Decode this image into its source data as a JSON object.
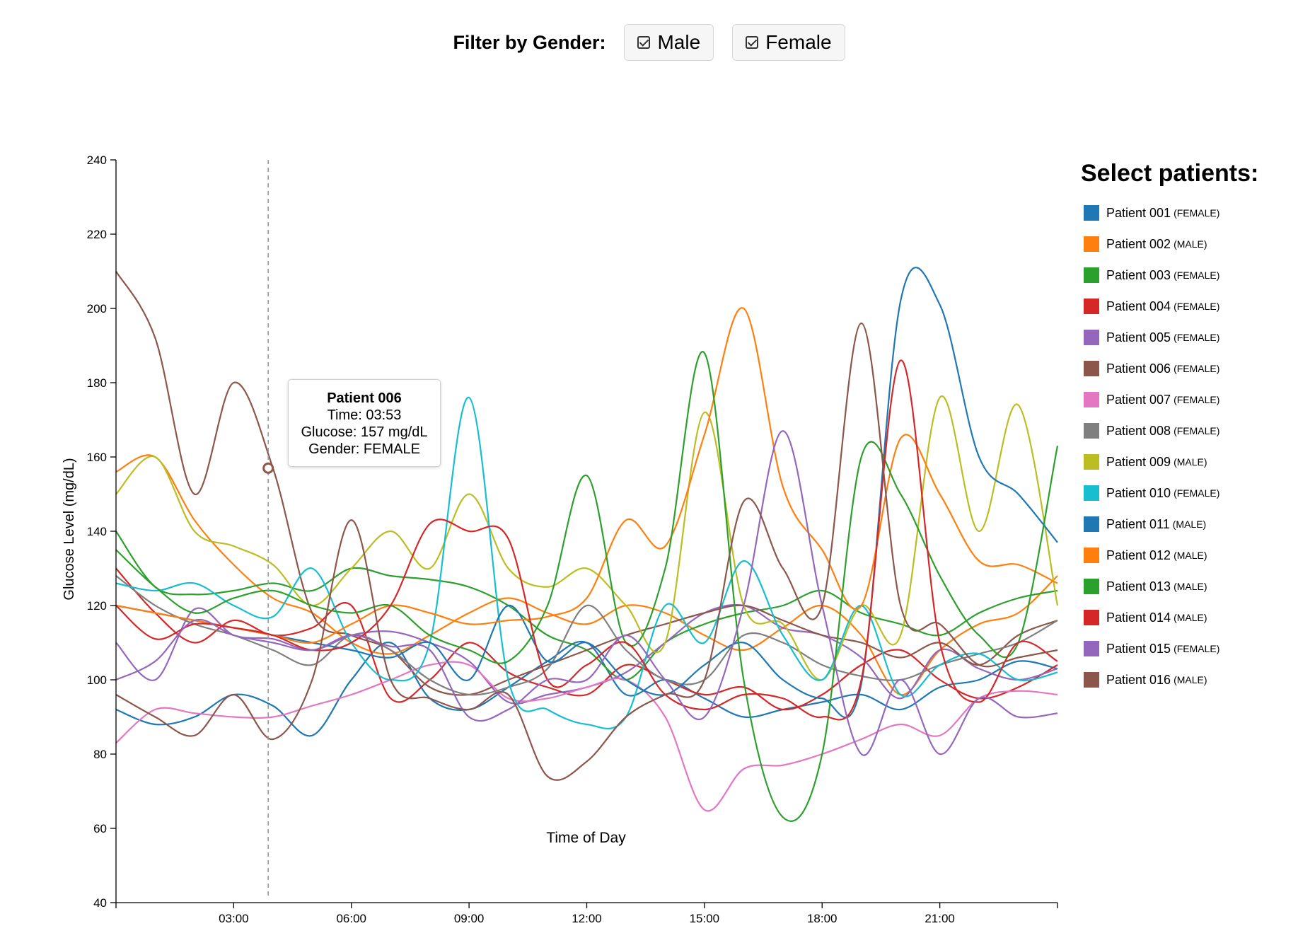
{
  "filter": {
    "label": "Filter by Gender:",
    "options": [
      {
        "label": "Male",
        "checked": true
      },
      {
        "label": "Female",
        "checked": true
      }
    ]
  },
  "legend": {
    "title": "Select patients:",
    "items": [
      {
        "name": "Patient 001",
        "gender": "(FEMALE)",
        "color": "#1f77b4"
      },
      {
        "name": "Patient 002",
        "gender": "(MALE)",
        "color": "#ff7f0e"
      },
      {
        "name": "Patient 003",
        "gender": "(FEMALE)",
        "color": "#2ca02c"
      },
      {
        "name": "Patient 004",
        "gender": "(FEMALE)",
        "color": "#d62728"
      },
      {
        "name": "Patient 005",
        "gender": "(FEMALE)",
        "color": "#9467bd"
      },
      {
        "name": "Patient 006",
        "gender": "(FEMALE)",
        "color": "#8c564b"
      },
      {
        "name": "Patient 007",
        "gender": "(FEMALE)",
        "color": "#e377c2"
      },
      {
        "name": "Patient 008",
        "gender": "(FEMALE)",
        "color": "#7f7f7f"
      },
      {
        "name": "Patient 009",
        "gender": "(MALE)",
        "color": "#bcbd22"
      },
      {
        "name": "Patient 010",
        "gender": "(FEMALE)",
        "color": "#17becf"
      },
      {
        "name": "Patient 011",
        "gender": "(MALE)",
        "color": "#1f77b4"
      },
      {
        "name": "Patient 012",
        "gender": "(MALE)",
        "color": "#ff7f0e"
      },
      {
        "name": "Patient 013",
        "gender": "(MALE)",
        "color": "#2ca02c"
      },
      {
        "name": "Patient 014",
        "gender": "(MALE)",
        "color": "#d62728"
      },
      {
        "name": "Patient 015",
        "gender": "(FEMALE)",
        "color": "#9467bd"
      },
      {
        "name": "Patient 016",
        "gender": "(MALE)",
        "color": "#8c564b"
      }
    ]
  },
  "tooltip": {
    "title": "Patient 006",
    "time": "Time: 03:53",
    "glucose": "Glucose: 157 mg/dL",
    "gender": "Gender: FEMALE"
  },
  "chart_data": {
    "type": "line",
    "xlabel": "Time of Day",
    "ylabel": "Glucose Level (mg/dL)",
    "xlim": [
      0,
      24
    ],
    "ylim": [
      40,
      240
    ],
    "x_ticks": [
      {
        "value": 3,
        "label": "03:00"
      },
      {
        "value": 6,
        "label": "06:00"
      },
      {
        "value": 9,
        "label": "09:00"
      },
      {
        "value": 12,
        "label": "12:00"
      },
      {
        "value": 15,
        "label": "15:00"
      },
      {
        "value": 18,
        "label": "18:00"
      },
      {
        "value": 21,
        "label": "21:00"
      }
    ],
    "y_ticks": [
      40,
      60,
      80,
      100,
      120,
      140,
      160,
      180,
      200,
      220,
      240
    ],
    "hover": {
      "x": 3.88,
      "y": 157,
      "series": "Patient 006",
      "color": "#8c564b"
    },
    "x": [
      0,
      1,
      2,
      3,
      4,
      5,
      6,
      7,
      8,
      9,
      10,
      11,
      12,
      13,
      14,
      15,
      16,
      17,
      18,
      19,
      20,
      21,
      22,
      23,
      24
    ],
    "series": [
      {
        "name": "Patient 001",
        "color": "#1f77b4",
        "values": [
          92,
          88,
          90,
          96,
          93,
          85,
          100,
          110,
          95,
          92,
          98,
          105,
          110,
          96,
          100,
          95,
          90,
          92,
          94,
          96,
          92,
          98,
          100,
          105,
          103
        ]
      },
      {
        "name": "Patient 002",
        "color": "#ff7f0e",
        "values": [
          156,
          160,
          143,
          131,
          122,
          118,
          110,
          107,
          112,
          118,
          122,
          118,
          115,
          120,
          118,
          112,
          108,
          114,
          120,
          112,
          96,
          108,
          115,
          118,
          128
        ]
      },
      {
        "name": "Patient 003",
        "color": "#2ca02c",
        "values": [
          140,
          125,
          123,
          124,
          126,
          124,
          130,
          128,
          127,
          125,
          120,
          112,
          108,
          100,
          110,
          115,
          118,
          120,
          124,
          118,
          115,
          112,
          118,
          122,
          124
        ]
      },
      {
        "name": "Patient 004",
        "color": "#d62728",
        "values": [
          130,
          118,
          110,
          116,
          112,
          114,
          120,
          95,
          100,
          110,
          102,
          98,
          96,
          104,
          100,
          96,
          98,
          92,
          96,
          104,
          108,
          100,
          95,
          98,
          104
        ]
      },
      {
        "name": "Patient 005",
        "color": "#9467bd",
        "values": [
          110,
          100,
          119,
          112,
          111,
          108,
          112,
          113,
          110,
          105,
          94,
          96,
          98,
          102,
          110,
          118,
          120,
          114,
          112,
          106,
          95,
          108,
          103,
          100,
          103
        ]
      },
      {
        "name": "Patient 006",
        "color": "#8c564b",
        "values": [
          210,
          192,
          150,
          180,
          157,
          118,
          112,
          108,
          98,
          96,
          100,
          104,
          108,
          112,
          115,
          118,
          120,
          116,
          112,
          110,
          106,
          110,
          104,
          112,
          116
        ]
      },
      {
        "name": "Patient 007",
        "color": "#e377c2",
        "values": [
          83,
          92,
          91,
          90,
          90,
          93,
          96,
          100,
          104,
          104,
          95,
          95,
          98,
          100,
          90,
          65,
          76,
          77,
          80,
          84,
          88,
          85,
          95,
          97,
          96
        ]
      },
      {
        "name": "Patient 008",
        "color": "#7f7f7f",
        "values": [
          128,
          120,
          115,
          112,
          108,
          104,
          112,
          108,
          100,
          96,
          98,
          103,
          120,
          108,
          100,
          100,
          112,
          110,
          104,
          101,
          100,
          104,
          107,
          110,
          116
        ]
      },
      {
        "name": "Patient 009",
        "color": "#bcbd22",
        "values": [
          150,
          160,
          140,
          136,
          131,
          120,
          130,
          140,
          130,
          150,
          130,
          125,
          130,
          120,
          110,
          172,
          120,
          115,
          100,
          120,
          112,
          176,
          140,
          174,
          120
        ]
      },
      {
        "name": "Patient 010",
        "color": "#17becf",
        "values": [
          126,
          124,
          126,
          120,
          117,
          130,
          110,
          100,
          110,
          176,
          100,
          92,
          88,
          90,
          120,
          110,
          132,
          112,
          100,
          120,
          96,
          104,
          107,
          100,
          102
        ]
      },
      {
        "name": "Patient 011",
        "color": "#1f77b4",
        "values": [
          120,
          118,
          116,
          114,
          112,
          110,
          108,
          106,
          110,
          100,
          120,
          105,
          110,
          100,
          96,
          104,
          110,
          100,
          95,
          99,
          202,
          201,
          160,
          150,
          137
        ]
      },
      {
        "name": "Patient 012",
        "color": "#ff7f0e",
        "values": [
          120,
          118,
          116,
          114,
          112,
          110,
          115,
          120,
          118,
          115,
          116,
          117,
          122,
          143,
          136,
          166,
          200,
          152,
          135,
          120,
          165,
          150,
          132,
          131,
          126
        ]
      },
      {
        "name": "Patient 013",
        "color": "#2ca02c",
        "values": [
          135,
          125,
          118,
          122,
          124,
          120,
          118,
          120,
          112,
          108,
          105,
          120,
          155,
          110,
          130,
          188,
          100,
          63,
          80,
          160,
          150,
          128,
          112,
          110,
          163
        ]
      },
      {
        "name": "Patient 014",
        "color": "#d62728",
        "values": [
          120,
          111,
          115,
          114,
          112,
          108,
          110,
          120,
          142,
          140,
          138,
          100,
          104,
          110,
          96,
          92,
          96,
          95,
          90,
          100,
          186,
          110,
          94,
          110,
          105
        ]
      },
      {
        "name": "Patient 015",
        "color": "#9467bd",
        "values": [
          100,
          105,
          116,
          112,
          110,
          108,
          112,
          109,
          108,
          90,
          92,
          100,
          100,
          112,
          100,
          90,
          120,
          167,
          120,
          80,
          100,
          80,
          95,
          90,
          91
        ]
      },
      {
        "name": "Patient 016",
        "color": "#8c564b",
        "values": [
          96,
          90,
          85,
          96,
          84,
          100,
          143,
          100,
          95,
          92,
          96,
          74,
          78,
          90,
          96,
          100,
          148,
          130,
          120,
          196,
          120,
          115,
          104,
          106,
          108
        ]
      }
    ]
  }
}
